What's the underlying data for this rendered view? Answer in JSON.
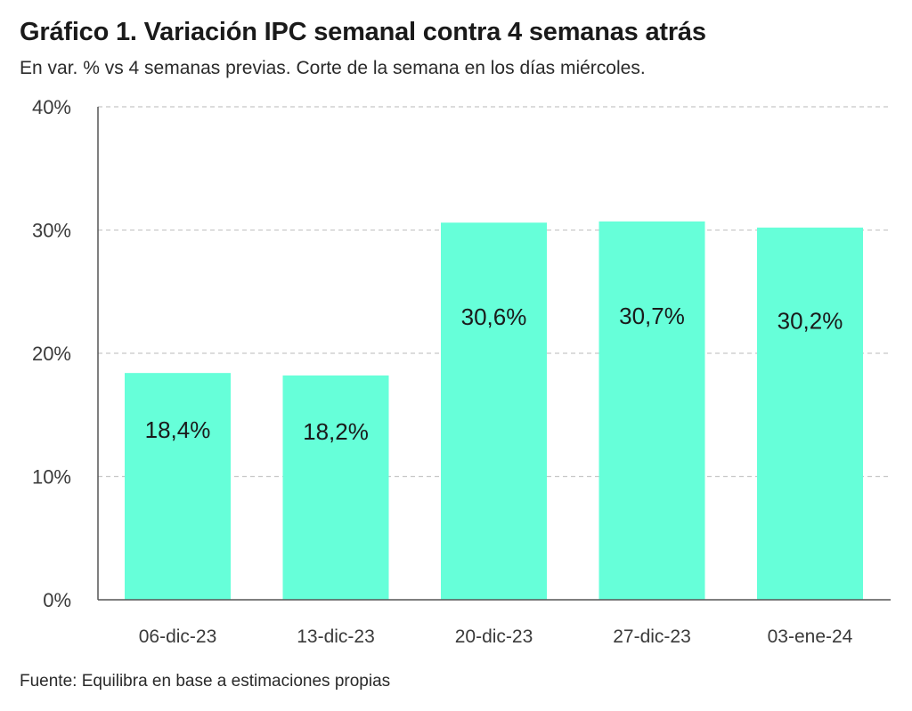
{
  "title": "Gráfico 1. Variación IPC semanal contra 4 semanas atrás",
  "subtitle": "En var. % vs 4 semanas previas. Corte de la semana en los días miércoles.",
  "source": "Fuente: Equilibra en base a estimaciones propias",
  "colors": {
    "bar": "#66ffd9",
    "grid": "#c8c8c8",
    "axis": "#555555"
  },
  "chart_data": {
    "type": "bar",
    "categories": [
      "06-dic-23",
      "13-dic-23",
      "20-dic-23",
      "27-dic-23",
      "03-ene-24"
    ],
    "values": [
      18.4,
      18.2,
      30.6,
      30.7,
      30.2
    ],
    "data_labels": [
      "18,4%",
      "18,2%",
      "30,6%",
      "30,7%",
      "30,2%"
    ],
    "ylim": [
      0,
      40
    ],
    "yticks": [
      0,
      10,
      20,
      30,
      40
    ],
    "ytick_labels": [
      "0%",
      "10%",
      "20%",
      "30%",
      "40%"
    ],
    "grid": true
  }
}
